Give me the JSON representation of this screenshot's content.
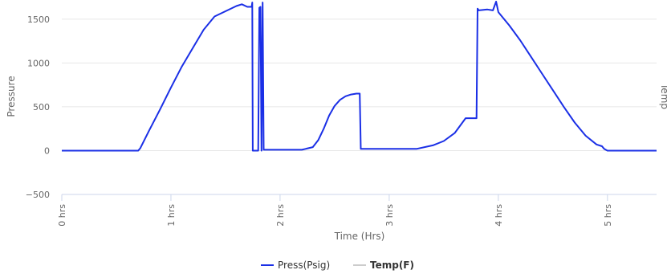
{
  "chart_data": {
    "type": "line",
    "title": "",
    "xlabel": "Time (Hrs)",
    "ylabel": "Pressure",
    "y2label_partial": "Temp",
    "xlim": [
      0,
      5.45
    ],
    "ylim": [
      -500,
      1700
    ],
    "x_tick_values": [
      0,
      1,
      2,
      3,
      4,
      5
    ],
    "x_tick_labels": [
      "0 hrs",
      "1 hrs",
      "2 hrs",
      "3 hrs",
      "4 hrs",
      "5 hrs"
    ],
    "y_tick_values": [
      1500,
      1000,
      500,
      0,
      -500
    ],
    "y_tick_labels": [
      "1500",
      "1000",
      "500",
      "0",
      "−500"
    ],
    "grid": true,
    "legend_position": "bottom-center",
    "series": [
      {
        "name": "Press(Psig)",
        "color": "#1a2fe6",
        "visible": true,
        "x": [
          0,
          0.7,
          0.72,
          0.8,
          0.9,
          1.0,
          1.1,
          1.2,
          1.3,
          1.4,
          1.5,
          1.6,
          1.65,
          1.7,
          1.74,
          1.745,
          1.75,
          1.8,
          1.81,
          1.82,
          1.83,
          1.84,
          1.85,
          2.0,
          2.2,
          2.3,
          2.35,
          2.4,
          2.45,
          2.5,
          2.55,
          2.6,
          2.65,
          2.7,
          2.72,
          2.73,
          2.74,
          3.0,
          3.25,
          3.4,
          3.5,
          3.6,
          3.7,
          3.8,
          3.81,
          3.82,
          3.9,
          3.95,
          3.98,
          4.0,
          4.1,
          4.2,
          4.3,
          4.4,
          4.5,
          4.6,
          4.7,
          4.8,
          4.9,
          4.95,
          4.97,
          5.0,
          5.45
        ],
        "y": [
          0,
          0,
          30,
          230,
          470,
          720,
          960,
          1170,
          1380,
          1530,
          1590,
          1650,
          1670,
          1640,
          1640,
          1690,
          0,
          0,
          1630,
          1640,
          0,
          1690,
          10,
          10,
          10,
          40,
          120,
          250,
          400,
          510,
          580,
          620,
          640,
          650,
          650,
          650,
          20,
          20,
          20,
          60,
          110,
          200,
          370,
          370,
          1620,
          1600,
          1610,
          1600,
          1700,
          1580,
          1430,
          1260,
          1070,
          880,
          690,
          500,
          320,
          170,
          70,
          50,
          20,
          0,
          0
        ]
      },
      {
        "name": "Temp(F)",
        "color": "#cccccc",
        "visible": false,
        "x": [],
        "y": []
      }
    ]
  }
}
